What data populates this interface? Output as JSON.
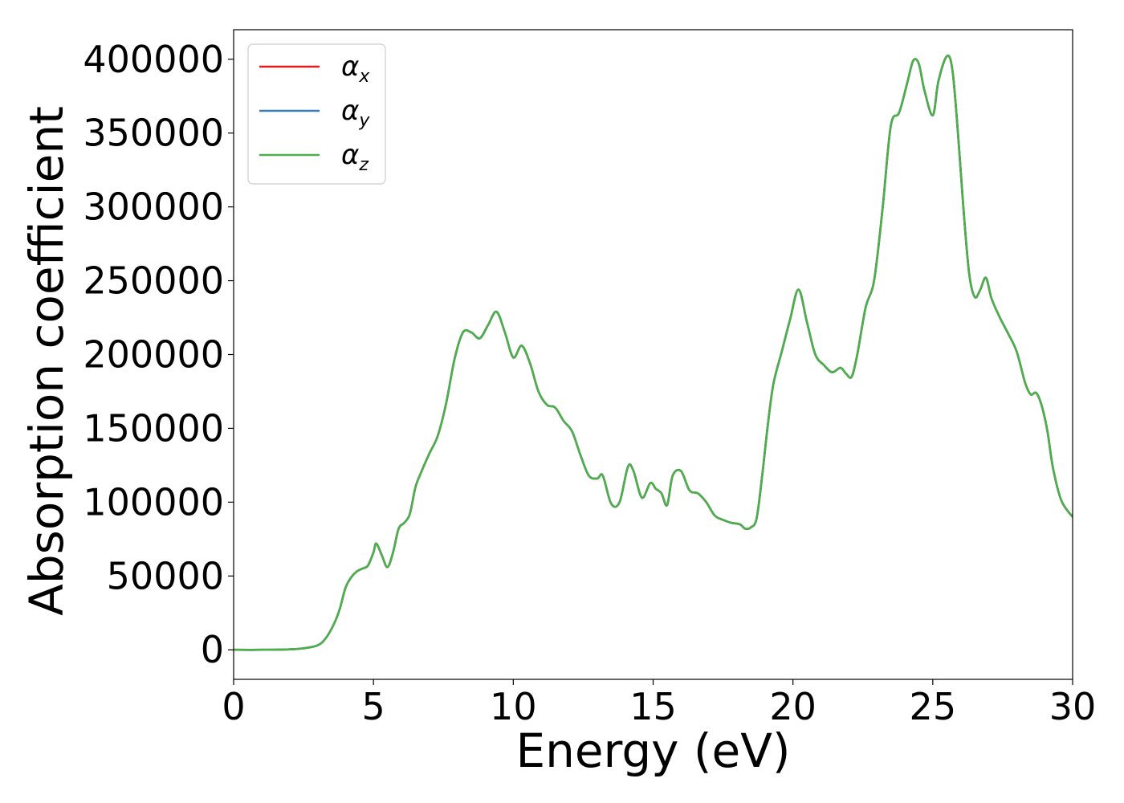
{
  "chart_data": {
    "type": "line",
    "title": "",
    "xlabel": "Energy (eV)",
    "ylabel": "Absorption coefficient",
    "xlim": [
      0,
      30
    ],
    "ylim": [
      -20000,
      420000
    ],
    "xticks": [
      0,
      5,
      10,
      15,
      20,
      25,
      30
    ],
    "yticks": [
      0,
      50000,
      100000,
      150000,
      200000,
      250000,
      300000,
      350000,
      400000
    ],
    "grid": false,
    "legend_position": "upper-left",
    "series": [
      {
        "name": "αx",
        "base": "α",
        "sub": "x",
        "color": "#e41a1c",
        "x": [
          0,
          1,
          2,
          2.5,
          3,
          3.3,
          3.6,
          3.8,
          4,
          4.2,
          4.4,
          4.6,
          4.8,
          5,
          5.1,
          5.3,
          5.5,
          5.7,
          5.9,
          6.1,
          6.3,
          6.5,
          6.7,
          7,
          7.3,
          7.6,
          7.9,
          8.2,
          8.5,
          8.8,
          9.1,
          9.4,
          9.7,
          10,
          10.3,
          10.6,
          10.9,
          11.2,
          11.5,
          11.8,
          12.1,
          12.4,
          12.7,
          13,
          13.2,
          13.5,
          13.8,
          14.1,
          14.3,
          14.6,
          14.9,
          15.1,
          15.3,
          15.5,
          15.7,
          16,
          16.3,
          16.6,
          16.9,
          17.2,
          17.5,
          17.8,
          18.1,
          18.3,
          18.5,
          18.7,
          18.9,
          19.1,
          19.3,
          19.6,
          19.9,
          20.2,
          20.5,
          20.8,
          21.1,
          21.4,
          21.7,
          21.9,
          22.1,
          22.3,
          22.6,
          22.9,
          23.2,
          23.5,
          23.8,
          24.1,
          24.3,
          24.5,
          24.7,
          25,
          25.2,
          25.5,
          25.7,
          25.9,
          26.1,
          26.3,
          26.5,
          26.7,
          26.9,
          27.1,
          27.4,
          27.7,
          28,
          28.3,
          28.5,
          28.7,
          28.9,
          29.1,
          29.3,
          29.6,
          30
        ],
        "y": [
          0,
          0,
          300,
          1000,
          3000,
          8000,
          18000,
          28000,
          42000,
          49000,
          53000,
          55000,
          57000,
          66000,
          72000,
          64000,
          56000,
          66000,
          82000,
          86000,
          92000,
          110000,
          120000,
          133000,
          145000,
          167000,
          197000,
          215000,
          215000,
          211000,
          220000,
          229000,
          215000,
          198000,
          206000,
          194000,
          175000,
          166000,
          164000,
          155000,
          148000,
          132000,
          118000,
          116000,
          118000,
          99000,
          100000,
          124000,
          121000,
          103000,
          113000,
          109000,
          106000,
          98000,
          118000,
          121000,
          108000,
          106000,
          100000,
          91000,
          88000,
          86000,
          85000,
          82000,
          83000,
          89000,
          118000,
          152000,
          180000,
          202000,
          224000,
          244000,
          222000,
          200000,
          193000,
          188000,
          191000,
          187000,
          185000,
          200000,
          232000,
          250000,
          298000,
          355000,
          364000,
          385000,
          399000,
          397000,
          379000,
          362000,
          385000,
          402000,
          393000,
          350000,
          298000,
          255000,
          239000,
          244000,
          252000,
          238000,
          225000,
          214000,
          202000,
          181000,
          173000,
          174000,
          165000,
          148000,
          123000,
          101000,
          90000
        ]
      },
      {
        "name": "αy",
        "base": "α",
        "sub": "y",
        "color": "#377eb8",
        "x": [
          0,
          1,
          2,
          2.5,
          3,
          3.3,
          3.6,
          3.8,
          4,
          4.2,
          4.4,
          4.6,
          4.8,
          5,
          5.1,
          5.3,
          5.5,
          5.7,
          5.9,
          6.1,
          6.3,
          6.5,
          6.7,
          7,
          7.3,
          7.6,
          7.9,
          8.2,
          8.5,
          8.8,
          9.1,
          9.4,
          9.7,
          10,
          10.3,
          10.6,
          10.9,
          11.2,
          11.5,
          11.8,
          12.1,
          12.4,
          12.7,
          13,
          13.2,
          13.5,
          13.8,
          14.1,
          14.3,
          14.6,
          14.9,
          15.1,
          15.3,
          15.5,
          15.7,
          16,
          16.3,
          16.6,
          16.9,
          17.2,
          17.5,
          17.8,
          18.1,
          18.3,
          18.5,
          18.7,
          18.9,
          19.1,
          19.3,
          19.6,
          19.9,
          20.2,
          20.5,
          20.8,
          21.1,
          21.4,
          21.7,
          21.9,
          22.1,
          22.3,
          22.6,
          22.9,
          23.2,
          23.5,
          23.8,
          24.1,
          24.3,
          24.5,
          24.7,
          25,
          25.2,
          25.5,
          25.7,
          25.9,
          26.1,
          26.3,
          26.5,
          26.7,
          26.9,
          27.1,
          27.4,
          27.7,
          28,
          28.3,
          28.5,
          28.7,
          28.9,
          29.1,
          29.3,
          29.6,
          30
        ],
        "y": [
          0,
          0,
          300,
          1000,
          3000,
          8000,
          18000,
          28000,
          42000,
          49000,
          53000,
          55000,
          57000,
          66000,
          72000,
          64000,
          56000,
          66000,
          82000,
          86000,
          92000,
          110000,
          120000,
          133000,
          145000,
          167000,
          197000,
          215000,
          215000,
          211000,
          220000,
          229000,
          215000,
          198000,
          206000,
          194000,
          175000,
          166000,
          164000,
          155000,
          148000,
          132000,
          118000,
          116000,
          118000,
          99000,
          100000,
          124000,
          121000,
          103000,
          113000,
          109000,
          106000,
          98000,
          118000,
          121000,
          108000,
          106000,
          100000,
          91000,
          88000,
          86000,
          85000,
          82000,
          83000,
          89000,
          118000,
          152000,
          180000,
          202000,
          224000,
          244000,
          222000,
          200000,
          193000,
          188000,
          191000,
          187000,
          185000,
          200000,
          232000,
          250000,
          298000,
          355000,
          364000,
          385000,
          399000,
          397000,
          379000,
          362000,
          385000,
          402000,
          393000,
          350000,
          298000,
          255000,
          239000,
          244000,
          252000,
          238000,
          225000,
          214000,
          202000,
          181000,
          173000,
          174000,
          165000,
          148000,
          123000,
          101000,
          90000
        ]
      },
      {
        "name": "αz",
        "base": "α",
        "sub": "z",
        "color": "#4daf4a",
        "x": [
          0,
          1,
          2,
          2.5,
          3,
          3.3,
          3.6,
          3.8,
          4,
          4.2,
          4.4,
          4.6,
          4.8,
          5,
          5.1,
          5.3,
          5.5,
          5.7,
          5.9,
          6.1,
          6.3,
          6.5,
          6.7,
          7,
          7.3,
          7.6,
          7.9,
          8.2,
          8.5,
          8.8,
          9.1,
          9.4,
          9.7,
          10,
          10.3,
          10.6,
          10.9,
          11.2,
          11.5,
          11.8,
          12.1,
          12.4,
          12.7,
          13,
          13.2,
          13.5,
          13.8,
          14.1,
          14.3,
          14.6,
          14.9,
          15.1,
          15.3,
          15.5,
          15.7,
          16,
          16.3,
          16.6,
          16.9,
          17.2,
          17.5,
          17.8,
          18.1,
          18.3,
          18.5,
          18.7,
          18.9,
          19.1,
          19.3,
          19.6,
          19.9,
          20.2,
          20.5,
          20.8,
          21.1,
          21.4,
          21.7,
          21.9,
          22.1,
          22.3,
          22.6,
          22.9,
          23.2,
          23.5,
          23.8,
          24.1,
          24.3,
          24.5,
          24.7,
          25,
          25.2,
          25.5,
          25.7,
          25.9,
          26.1,
          26.3,
          26.5,
          26.7,
          26.9,
          27.1,
          27.4,
          27.7,
          28,
          28.3,
          28.5,
          28.7,
          28.9,
          29.1,
          29.3,
          29.6,
          30
        ],
        "y": [
          0,
          0,
          300,
          1000,
          3000,
          8000,
          18000,
          28000,
          42000,
          49000,
          53000,
          55000,
          57000,
          66000,
          72000,
          64000,
          56000,
          66000,
          82000,
          86000,
          92000,
          110000,
          120000,
          133000,
          145000,
          167000,
          197000,
          215000,
          215000,
          211000,
          220000,
          229000,
          215000,
          198000,
          206000,
          194000,
          175000,
          166000,
          164000,
          155000,
          148000,
          132000,
          118000,
          116000,
          118000,
          99000,
          100000,
          124000,
          121000,
          103000,
          113000,
          109000,
          106000,
          98000,
          118000,
          121000,
          108000,
          106000,
          100000,
          91000,
          88000,
          86000,
          85000,
          82000,
          83000,
          89000,
          118000,
          152000,
          180000,
          202000,
          224000,
          244000,
          222000,
          200000,
          193000,
          188000,
          191000,
          187000,
          185000,
          200000,
          232000,
          250000,
          298000,
          355000,
          364000,
          385000,
          399000,
          397000,
          379000,
          362000,
          385000,
          402000,
          393000,
          350000,
          298000,
          255000,
          239000,
          244000,
          252000,
          238000,
          225000,
          214000,
          202000,
          181000,
          173000,
          174000,
          165000,
          148000,
          123000,
          101000,
          90000
        ]
      }
    ]
  }
}
